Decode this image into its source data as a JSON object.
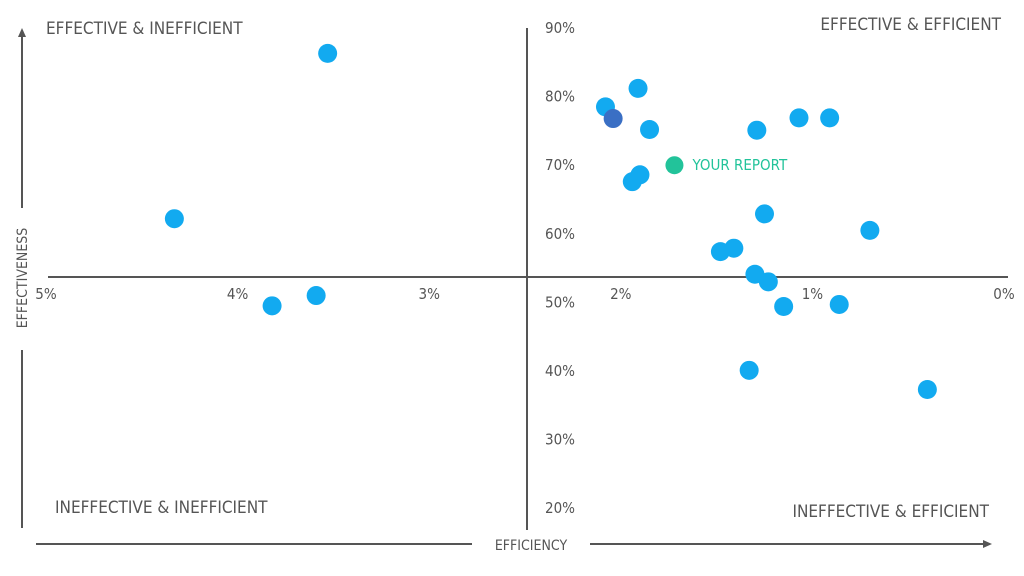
{
  "chart_data": {
    "type": "scatter",
    "x_axis": {
      "label": "EFFICIENCY",
      "ticks": [
        "5%",
        "4%",
        "3%",
        "2%",
        "1%",
        "0%"
      ],
      "tick_values": [
        5,
        4,
        3,
        2,
        1,
        0
      ],
      "xlim": [
        5,
        0
      ],
      "direction": "reversed (high % on left)"
    },
    "y_axis": {
      "label": "EFFECTIVENESS",
      "ticks": [
        "90%",
        "80%",
        "70%",
        "60%",
        "50%",
        "40%",
        "30%",
        "20%"
      ],
      "tick_values": [
        90,
        80,
        70,
        60,
        50,
        40,
        30,
        20
      ]
    },
    "quadrants": {
      "top_left": "EFFECTIVE & INEFFICIENT",
      "top_right": "EFFECTIVE & EFFICIENT",
      "bottom_left": "INEFFECTIVE & INEFFICIENT",
      "bottom_right": "INEFFECTIVE & EFFICIENT"
    },
    "highlight": {
      "label": "YOUR REPORT",
      "x": 1.72,
      "y": 70.0,
      "color": "#22c39a"
    },
    "colors": {
      "points": "#12aaf0",
      "accent_point": "#3a6fc4",
      "axis": "#555555",
      "text": "#555555"
    },
    "points": [
      {
        "x": 3.53,
        "y": 86.3
      },
      {
        "x": 4.33,
        "y": 62.2
      },
      {
        "x": 3.82,
        "y": 49.5
      },
      {
        "x": 3.59,
        "y": 51.0
      },
      {
        "x": 2.08,
        "y": 78.5
      },
      {
        "x": 2.04,
        "y": 76.8,
        "accent": true
      },
      {
        "x": 1.91,
        "y": 81.2
      },
      {
        "x": 1.85,
        "y": 75.2
      },
      {
        "x": 1.94,
        "y": 67.6
      },
      {
        "x": 1.9,
        "y": 68.6
      },
      {
        "x": 1.48,
        "y": 57.4
      },
      {
        "x": 1.41,
        "y": 57.9
      },
      {
        "x": 1.25,
        "y": 62.9
      },
      {
        "x": 1.23,
        "y": 53.0
      },
      {
        "x": 1.15,
        "y": 49.4
      },
      {
        "x": 0.86,
        "y": 49.7
      },
      {
        "x": 1.29,
        "y": 75.1
      },
      {
        "x": 1.07,
        "y": 76.9
      },
      {
        "x": 0.91,
        "y": 76.9
      },
      {
        "x": 0.7,
        "y": 60.5
      },
      {
        "x": 1.3,
        "y": 54.1
      },
      {
        "x": 1.33,
        "y": 40.1
      },
      {
        "x": 0.4,
        "y": 37.3
      }
    ]
  }
}
